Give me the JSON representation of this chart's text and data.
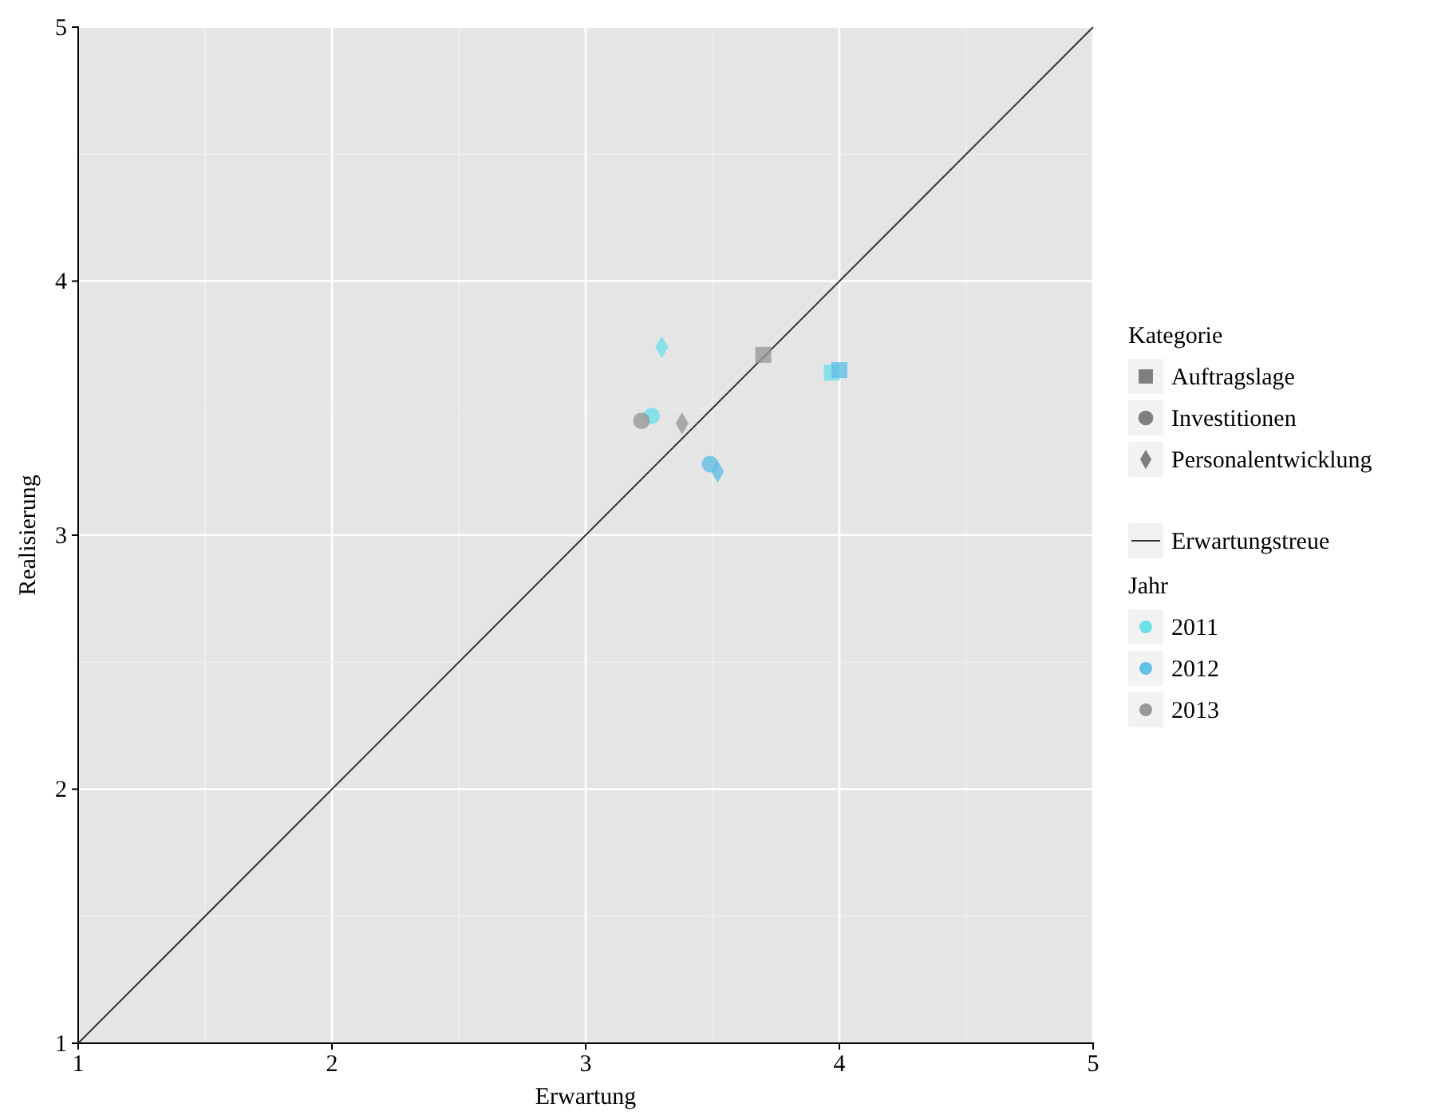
{
  "chart_data": {
    "type": "scatter",
    "xlabel": "Erwartung",
    "ylabel": "Realisierung",
    "xlim": [
      1,
      5
    ],
    "ylim": [
      1,
      5
    ],
    "xticks": [
      1,
      2,
      3,
      4,
      5
    ],
    "yticks": [
      1,
      2,
      3,
      4,
      5
    ],
    "grid": true,
    "legend": "right",
    "legend_title": "Kategorie",
    "annotations": [
      "Jahr"
    ],
    "series": [
      {
        "name": "Auftragslage",
        "marker": "square",
        "color": "#7f7f7f"
      },
      {
        "name": "Investitionen",
        "marker": "circle",
        "color": "#7f7f7f"
      },
      {
        "name": "Personalentwicklung",
        "marker": "diamond",
        "color": "#7f7f7f"
      },
      {
        "name": "Erwartungstreue",
        "type": "line",
        "color": "#333333",
        "x": [
          1,
          5
        ],
        "values": [
          1,
          5
        ]
      },
      {
        "name": "2011",
        "color": "#6ee0e8",
        "marker": [
          "square",
          "circle",
          "diamond"
        ],
        "x": [
          3.97,
          3.26,
          3.3
        ],
        "values": [
          3.64,
          3.47,
          3.74
        ]
      },
      {
        "name": "2012",
        "color": "#62bfe6",
        "marker": [
          "square",
          "circle",
          "diamond"
        ],
        "x": [
          4.0,
          3.49,
          3.52
        ],
        "values": [
          3.65,
          3.28,
          3.25
        ]
      },
      {
        "name": "2013",
        "color": "#999999",
        "marker": [
          "square",
          "circle",
          "diamond"
        ],
        "x": [
          3.7,
          3.22,
          3.38
        ],
        "values": [
          3.71,
          3.45,
          3.44
        ]
      }
    ]
  }
}
